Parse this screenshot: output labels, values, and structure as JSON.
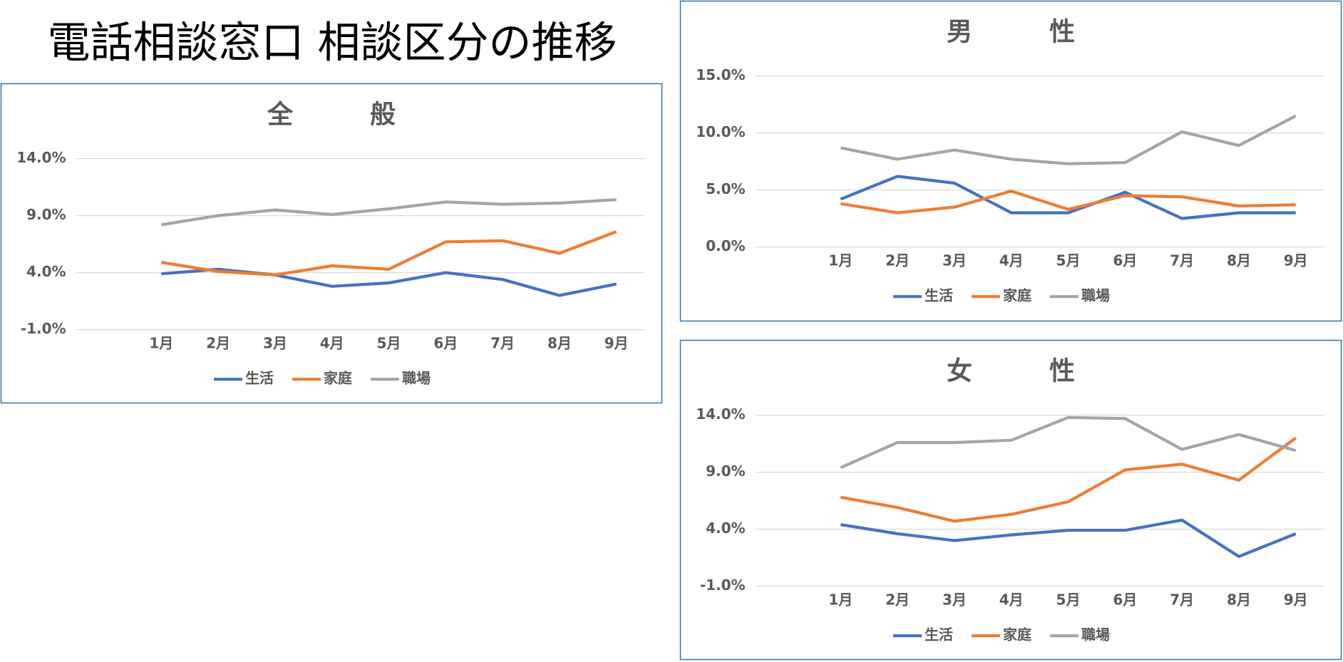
{
  "title": "電話相談窓口 相談区分の推移",
  "chart_data": [
    {
      "type": "line",
      "title": "全　　　般",
      "categories": [
        "1月",
        "2月",
        "3月",
        "4月",
        "5月",
        "6月",
        "7月",
        "8月",
        "9月"
      ],
      "ylim": [
        -1,
        14
      ],
      "yticks": [
        {
          "value": -1,
          "label": "-1.0%"
        },
        {
          "value": 4,
          "label": "4.0%"
        },
        {
          "value": 9,
          "label": "9.0%"
        },
        {
          "value": 14,
          "label": "14.0%"
        }
      ],
      "grid": true,
      "legend": "bottom",
      "series": [
        {
          "name": "生活",
          "color": "#4472c4",
          "values": [
            3.9,
            4.3,
            3.8,
            2.8,
            3.1,
            4.0,
            3.4,
            2.0,
            3.0
          ]
        },
        {
          "name": "家庭",
          "color": "#ed7d31",
          "values": [
            4.9,
            4.1,
            3.8,
            4.6,
            4.3,
            6.7,
            6.8,
            5.7,
            7.6
          ]
        },
        {
          "name": "職場",
          "color": "#a5a5a5",
          "values": [
            8.2,
            9.0,
            9.5,
            9.1,
            9.6,
            10.2,
            10.0,
            10.1,
            10.4
          ]
        }
      ]
    },
    {
      "type": "line",
      "title": "男　　　性",
      "categories": [
        "1月",
        "2月",
        "3月",
        "4月",
        "5月",
        "6月",
        "7月",
        "8月",
        "9月"
      ],
      "ylim": [
        0,
        15
      ],
      "yticks": [
        {
          "value": 0,
          "label": "0.0%"
        },
        {
          "value": 5,
          "label": "5.0%"
        },
        {
          "value": 10,
          "label": "10.0%"
        },
        {
          "value": 15,
          "label": "15.0%"
        }
      ],
      "grid": true,
      "legend": "bottom",
      "series": [
        {
          "name": "生活",
          "color": "#4472c4",
          "values": [
            4.2,
            6.2,
            5.6,
            3.0,
            3.0,
            4.8,
            2.5,
            3.0,
            3.0
          ]
        },
        {
          "name": "家庭",
          "color": "#ed7d31",
          "values": [
            3.8,
            3.0,
            3.5,
            4.9,
            3.3,
            4.5,
            4.4,
            3.6,
            3.7
          ]
        },
        {
          "name": "職場",
          "color": "#a5a5a5",
          "values": [
            8.7,
            7.7,
            8.5,
            7.7,
            7.3,
            7.4,
            10.1,
            8.9,
            11.5
          ]
        }
      ]
    },
    {
      "type": "line",
      "title": "女　　　性",
      "categories": [
        "1月",
        "2月",
        "3月",
        "4月",
        "5月",
        "6月",
        "7月",
        "8月",
        "9月"
      ],
      "ylim": [
        -1,
        14
      ],
      "yticks": [
        {
          "value": -1,
          "label": "-1.0%"
        },
        {
          "value": 4,
          "label": "4.0%"
        },
        {
          "value": 9,
          "label": "9.0%"
        },
        {
          "value": 14,
          "label": "14.0%"
        }
      ],
      "grid": true,
      "legend": "bottom",
      "series": [
        {
          "name": "生活",
          "color": "#4472c4",
          "values": [
            4.4,
            3.6,
            3.0,
            3.5,
            3.9,
            3.9,
            4.8,
            1.6,
            3.6
          ]
        },
        {
          "name": "家庭",
          "color": "#ed7d31",
          "values": [
            6.8,
            5.9,
            4.7,
            5.3,
            6.4,
            9.2,
            9.7,
            8.3,
            12.0
          ]
        },
        {
          "name": "職場",
          "color": "#a5a5a5",
          "values": [
            9.4,
            11.6,
            11.6,
            11.8,
            13.8,
            13.7,
            11.0,
            12.3,
            10.9
          ]
        }
      ]
    }
  ]
}
